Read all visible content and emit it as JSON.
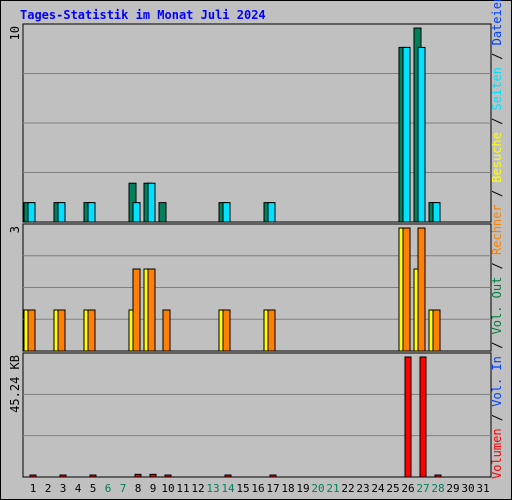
{
  "title": "Tages-Statistik im Monat Juli 2024",
  "colors": {
    "background": "#c0c0c0",
    "title": "#0000ff",
    "anfragen": "#00805c",
    "dateien": "#00c0ff",
    "seiten": "#00e0ff",
    "besuche": "#ffff00",
    "rechner": "#ff8000",
    "vol_out": "#008040",
    "vol_in": "#0040ff",
    "volumen": "#ff0000",
    "weekend": "#00805c",
    "weekday": "#000000",
    "grid": "#808080"
  },
  "legend": [
    {
      "key": "volumen",
      "label": "Volumen",
      "color": "#ff0000"
    },
    {
      "key": "sep1",
      "label": " / ",
      "color": "#000000"
    },
    {
      "key": "vol_in",
      "label": "Vol. In",
      "color": "#0040ff"
    },
    {
      "key": "sep2",
      "label": " / ",
      "color": "#000000"
    },
    {
      "key": "vol_out",
      "label": "Vol. Out",
      "color": "#008040"
    },
    {
      "key": "sep3",
      "label": " / ",
      "color": "#000000"
    },
    {
      "key": "rechner",
      "label": "Rechner",
      "color": "#ff8000"
    },
    {
      "key": "sep4",
      "label": " / ",
      "color": "#000000"
    },
    {
      "key": "besuche",
      "label": "Besuche",
      "color": "#ffff00"
    },
    {
      "key": "sep5",
      "label": " / ",
      "color": "#000000"
    },
    {
      "key": "seiten",
      "label": "Seiten",
      "color": "#00e0ff"
    },
    {
      "key": "sep6",
      "label": " / ",
      "color": "#000000"
    },
    {
      "key": "dateien",
      "label": "Dateien",
      "color": "#0040ff"
    },
    {
      "key": "sep7",
      "label": " / ",
      "color": "#000000"
    },
    {
      "key": "anfragen",
      "label": "Anfragen",
      "color": "#00805c"
    }
  ],
  "chart_data": [
    {
      "type": "bar",
      "panel": "anfragen",
      "ymax_label": "10",
      "ylim": [
        0,
        10
      ],
      "categories": [
        "1",
        "2",
        "3",
        "4",
        "5",
        "6",
        "7",
        "8",
        "9",
        "10",
        "11",
        "12",
        "13",
        "14",
        "15",
        "16",
        "17",
        "18",
        "19",
        "20",
        "21",
        "22",
        "23",
        "24",
        "25",
        "26",
        "27",
        "28",
        "29",
        "30",
        "31"
      ],
      "weekend_days": [
        6,
        7,
        13,
        14,
        20,
        21,
        27,
        28
      ],
      "series": [
        {
          "key": "anfragen",
          "color": "#00805c",
          "values": [
            1,
            0,
            1,
            0,
            1,
            0,
            0,
            2,
            2,
            1,
            0,
            0,
            0,
            1,
            0,
            0,
            1,
            0,
            0,
            0,
            0,
            0,
            0,
            0,
            0,
            9,
            10,
            1,
            0,
            0,
            0
          ]
        },
        {
          "key": "dateien",
          "color": "#00e0ff",
          "values": [
            1,
            0,
            1,
            0,
            1,
            0,
            0,
            1,
            2,
            0,
            0,
            0,
            0,
            1,
            0,
            0,
            1,
            0,
            0,
            0,
            0,
            0,
            0,
            0,
            0,
            9,
            9,
            1,
            0,
            0,
            0
          ]
        }
      ]
    },
    {
      "type": "bar",
      "panel": "besuche",
      "ymax_label": "3",
      "ylim": [
        0,
        3
      ],
      "series": [
        {
          "key": "besuche",
          "color": "#ffff00",
          "values": [
            1,
            0,
            1,
            0,
            1,
            0,
            0,
            1,
            2,
            0,
            0,
            0,
            0,
            1,
            0,
            0,
            1,
            0,
            0,
            0,
            0,
            0,
            0,
            0,
            0,
            3,
            2,
            1,
            0,
            0,
            0
          ]
        },
        {
          "key": "rechner",
          "color": "#ff8000",
          "values": [
            1,
            0,
            1,
            0,
            1,
            0,
            0,
            2,
            2,
            1,
            0,
            0,
            0,
            1,
            0,
            0,
            1,
            0,
            0,
            0,
            0,
            0,
            0,
            0,
            0,
            3,
            3,
            1,
            0,
            0,
            0
          ]
        }
      ]
    },
    {
      "type": "bar",
      "panel": "volumen",
      "ymax_label": "45.24 KB",
      "ylim": [
        0,
        45.24
      ],
      "unit": "KB",
      "series": [
        {
          "key": "volumen",
          "color": "#ff0000",
          "values": [
            0.5,
            0,
            0.5,
            0,
            0.5,
            0,
            0,
            1.0,
            1.0,
            0.5,
            0,
            0,
            0,
            0.5,
            0,
            0,
            0.5,
            0,
            0,
            0,
            0,
            0,
            0,
            0,
            0,
            45.24,
            45.24,
            0.5,
            0,
            0,
            0
          ]
        }
      ]
    }
  ]
}
